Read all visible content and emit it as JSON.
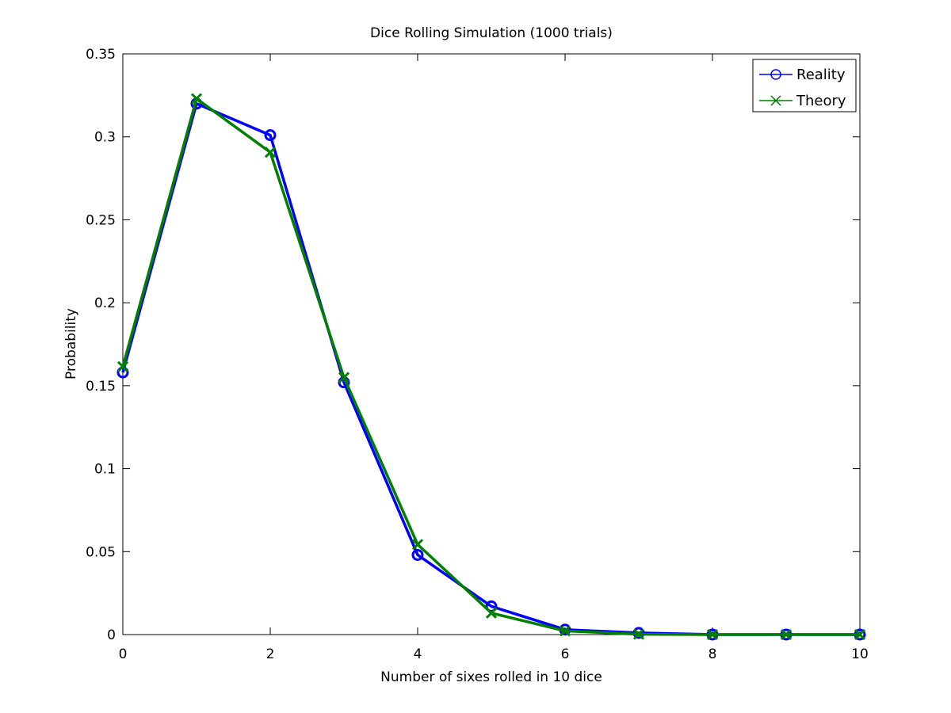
{
  "chart_data": {
    "type": "line",
    "title": "Dice Rolling Simulation (1000 trials)",
    "xlabel": "Number of sixes rolled in 10 dice",
    "ylabel": "Probability",
    "xlim": [
      0,
      10
    ],
    "ylim": [
      0,
      0.35
    ],
    "xticks": [
      0,
      2,
      4,
      6,
      8,
      10
    ],
    "yticks": [
      0,
      0.05,
      0.1,
      0.15,
      0.2,
      0.25,
      0.3,
      0.35
    ],
    "xtick_labels": [
      "0",
      "2",
      "4",
      "6",
      "8",
      "10"
    ],
    "ytick_labels": [
      "0",
      "0.05",
      "0.1",
      "0.15",
      "0.2",
      "0.25",
      "0.3",
      "0.35"
    ],
    "grid": false,
    "legend_position": "top-right",
    "x": [
      0,
      1,
      2,
      3,
      4,
      5,
      6,
      7,
      8,
      9,
      10
    ],
    "series": [
      {
        "name": "Reality",
        "color": "#0000ff",
        "marker": "circle",
        "values": [
          0.158,
          0.32,
          0.301,
          0.152,
          0.048,
          0.017,
          0.003,
          0.001,
          0.0,
          0.0,
          0.0
        ]
      },
      {
        "name": "Theory",
        "color": "#008000",
        "marker": "x",
        "values": [
          0.1615,
          0.323,
          0.2907,
          0.155,
          0.0543,
          0.013,
          0.0022,
          0.0002,
          0.0,
          0.0,
          0.0
        ]
      }
    ]
  }
}
